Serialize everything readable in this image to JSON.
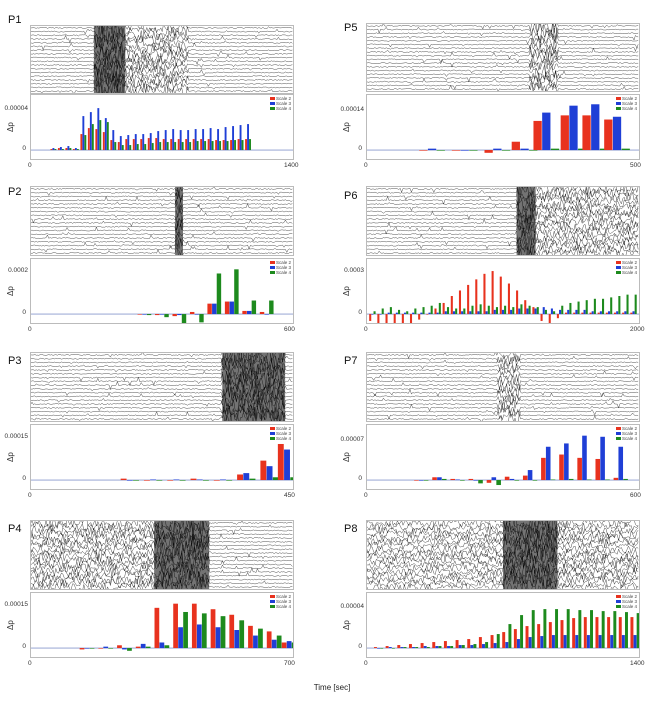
{
  "legend": [
    "Scale 2",
    "Scale 3",
    "Scale 4"
  ],
  "colors": {
    "scale2": "#e8321e",
    "scale3": "#1f3fd6",
    "scale4": "#1d8a1d",
    "zero": "#8899cc"
  },
  "xaxis_label": "Time [sec]",
  "ylabel": "Δp",
  "chart_data": [
    {
      "id": "P1",
      "type": "bar",
      "title": "P1",
      "ytick": "0.00004",
      "ymax": 5e-05,
      "xlim": [
        0,
        1400
      ],
      "xticks": [
        "0",
        "1400"
      ],
      "ylabel": "Δp",
      "x": [
        120,
        160,
        200,
        240,
        280,
        320,
        360,
        400,
        440,
        480,
        520,
        560,
        600,
        640,
        680,
        720,
        760,
        800,
        840,
        880,
        920,
        960,
        1000,
        1040,
        1080,
        1120,
        1160
      ],
      "series": [
        {
          "name": "Scale 2",
          "values": [
            1e-06,
            2e-06,
            2e-06,
            1e-06,
            1.6e-05,
            2.2e-05,
            2.1e-05,
            1.8e-05,
            1e-05,
            8e-06,
            1.1e-05,
            1.1e-05,
            1.1e-05,
            1.2e-05,
            1.2e-05,
            1.1e-05,
            1.1e-05,
            1.1e-05,
            1.1e-05,
            1.1e-05,
            1.1e-05,
            1.1e-05,
            1e-05,
            1e-05,
            1e-05,
            1.1e-05,
            1.1e-05
          ]
        },
        {
          "name": "Scale 3",
          "values": [
            2e-06,
            3e-06,
            4e-06,
            2e-06,
            3.4e-05,
            3.8e-05,
            4.2e-05,
            3.2e-05,
            2e-05,
            1.4e-05,
            1.5e-05,
            1.6e-05,
            1.6e-05,
            1.7e-05,
            1.9e-05,
            2e-05,
            2.1e-05,
            2e-05,
            2e-05,
            2.1e-05,
            2.1e-05,
            2.2e-05,
            2.1e-05,
            2.3e-05,
            2.4e-05,
            2.5e-05,
            2.6e-05
          ]
        },
        {
          "name": "Scale 4",
          "values": [
            1e-06,
            1e-06,
            2e-06,
            1e-06,
            1.5e-05,
            2.6e-05,
            3e-05,
            2.8e-05,
            8e-06,
            5e-06,
            5e-06,
            6e-06,
            6e-06,
            7e-06,
            8e-06,
            8e-06,
            8e-06,
            8e-06,
            8e-06,
            9e-06,
            9e-06,
            9e-06,
            9e-06,
            9e-06,
            1e-05,
            1e-05,
            1.1e-05
          ]
        }
      ]
    },
    {
      "id": "P2",
      "type": "bar",
      "title": "P2",
      "ytick": "0.0002",
      "ymax": 0.00024,
      "xlim": [
        0,
        600
      ],
      "xticks": [
        "0",
        "600"
      ],
      "ylabel": "Δp",
      "x": [
        260,
        300,
        340,
        380,
        420,
        460,
        500,
        540
      ],
      "series": [
        {
          "name": "Scale 2",
          "values": [
            0.0,
            -5e-06,
            -1e-05,
            1e-05,
            5e-05,
            6e-05,
            1.5e-05,
            1e-05
          ]
        },
        {
          "name": "Scale 3",
          "values": [
            0.0,
            0.0,
            -5e-06,
            0.0,
            5e-05,
            6e-05,
            1.5e-05,
            0.0
          ]
        },
        {
          "name": "Scale 4",
          "values": [
            -5e-06,
            -1.5e-05,
            -6.5e-05,
            -4e-05,
            0.000195,
            0.000215,
            6.5e-05,
            6.5e-05
          ]
        }
      ]
    },
    {
      "id": "P3",
      "type": "bar",
      "title": "P3",
      "ytick": "0.00015",
      "ymax": 0.00018,
      "xlim": [
        0,
        450
      ],
      "xticks": [
        "0",
        "450"
      ],
      "ylabel": "Δp",
      "x": [
        170,
        210,
        250,
        290,
        330,
        370,
        410,
        440
      ],
      "series": [
        {
          "name": "Scale 2",
          "values": [
            5e-06,
            0.0,
            0.0,
            5e-06,
            0.0,
            2e-05,
            7e-05,
            0.00013
          ]
        },
        {
          "name": "Scale 3",
          "values": [
            0.0,
            2e-06,
            2e-06,
            2e-06,
            2e-06,
            2.5e-05,
            5e-05,
            0.00011
          ]
        },
        {
          "name": "Scale 4",
          "values": [
            0.0,
            0.0,
            0.0,
            0.0,
            0.0,
            5e-06,
            1e-05,
            1e-05
          ]
        }
      ]
    },
    {
      "id": "P4",
      "type": "bar",
      "title": "P4",
      "ytick": "0.00015",
      "ymax": 0.00018,
      "xlim": [
        0,
        700
      ],
      "xticks": [
        "0",
        "700"
      ],
      "ylabel": "Δp",
      "x": [
        150,
        200,
        250,
        300,
        350,
        400,
        450,
        500,
        550,
        600,
        650,
        690
      ],
      "series": [
        {
          "name": "Scale 2",
          "values": [
            -5e-06,
            0.0,
            1e-05,
            5e-06,
            0.000145,
            0.00016,
            0.00016,
            0.00014,
            0.00012,
            8e-05,
            6e-05,
            2e-05
          ]
        },
        {
          "name": "Scale 3",
          "values": [
            0.0,
            5e-06,
            -5e-06,
            1.5e-05,
            2e-05,
            7.5e-05,
            8.5e-05,
            7.5e-05,
            6.5e-05,
            4.5e-05,
            3e-05,
            2.5e-05
          ]
        },
        {
          "name": "Scale 4",
          "values": [
            0.0,
            0.0,
            -1e-05,
            5e-06,
            1e-05,
            0.00013,
            0.000125,
            0.000115,
            0.0001,
            7e-05,
            4.5e-05,
            2e-05
          ]
        }
      ]
    },
    {
      "id": "P5",
      "type": "bar",
      "title": "P5",
      "ytick": "0.00014",
      "ymax": 0.00018,
      "xlim": [
        0,
        500
      ],
      "xticks": [
        "0",
        "500"
      ],
      "ylabel": "Δp",
      "x": [
        120,
        180,
        240,
        290,
        330,
        380,
        420,
        460
      ],
      "series": [
        {
          "name": "Scale 2",
          "values": [
            0.0,
            0.0,
            -1e-05,
            3e-05,
            0.000105,
            0.000125,
            0.000125,
            0.00011
          ]
        },
        {
          "name": "Scale 3",
          "values": [
            5e-06,
            0.0,
            5e-06,
            5e-06,
            0.000135,
            0.00016,
            0.000165,
            0.00012
          ]
        },
        {
          "name": "Scale 4",
          "values": [
            0.0,
            0.0,
            0.0,
            0.0,
            5e-06,
            5e-06,
            5e-06,
            5e-06
          ]
        }
      ]
    },
    {
      "id": "P6",
      "type": "bar",
      "title": "P6",
      "ytick": "0.0003",
      "ymax": 0.00036,
      "xlim": [
        0,
        2000
      ],
      "xticks": [
        "0",
        "2000"
      ],
      "ylabel": "Δp",
      "x": [
        40,
        100,
        160,
        220,
        280,
        340,
        400,
        460,
        520,
        580,
        640,
        700,
        760,
        820,
        880,
        940,
        1000,
        1060,
        1120,
        1180,
        1240,
        1300,
        1360,
        1420,
        1480,
        1540,
        1600,
        1660,
        1720,
        1780,
        1840,
        1900,
        1960
      ],
      "series": [
        {
          "name": "Scale 2",
          "values": [
            -5e-05,
            -9e-05,
            -0.00011,
            -0.00012,
            -0.0001,
            -7e-05,
            -4e-05,
            0.0,
            4e-05,
            8e-05,
            0.00013,
            0.00017,
            0.00021,
            0.00025,
            0.00029,
            0.00031,
            0.00027,
            0.00022,
            0.00017,
            0.0001,
            5e-05,
            -5e-05,
            -0.00011,
            -3e-05,
            1e-05,
            1e-05,
            1e-05,
            1e-05,
            1e-05,
            1e-05,
            1e-05,
            1e-05,
            1e-05
          ]
        },
        {
          "name": "Scale 3",
          "values": [
            0.0,
            0.0,
            1e-05,
            1e-05,
            1e-05,
            1e-05,
            1e-05,
            1e-05,
            1e-05,
            2e-05,
            2e-05,
            2e-05,
            2e-05,
            2e-05,
            2e-05,
            3e-05,
            3e-05,
            3e-05,
            4e-05,
            4e-05,
            4e-05,
            5e-05,
            4e-05,
            3e-05,
            3e-05,
            3e-05,
            3e-05,
            2e-05,
            2e-05,
            2e-05,
            2e-05,
            2e-05,
            2e-05
          ]
        },
        {
          "name": "Scale 4",
          "values": [
            2e-05,
            4e-05,
            5e-05,
            3e-05,
            2e-05,
            4e-05,
            5e-05,
            6e-05,
            8e-05,
            5e-05,
            4e-05,
            4e-05,
            6e-05,
            7e-05,
            6e-05,
            5e-05,
            6e-05,
            5e-05,
            7e-05,
            6e-05,
            5e-05,
            3e-05,
            2e-05,
            6e-05,
            8e-05,
            9e-05,
            0.0001,
            0.00011,
            0.00011,
            0.00012,
            0.00013,
            0.00014,
            0.00014
          ]
        }
      ]
    },
    {
      "id": "P7",
      "type": "bar",
      "title": "P7",
      "ytick": "0.00007",
      "ymax": 9e-05,
      "xlim": [
        0,
        600
      ],
      "xticks": [
        "0",
        "600"
      ],
      "ylabel": "Δp",
      "x": [
        120,
        160,
        200,
        240,
        280,
        320,
        360,
        400,
        440,
        480,
        520,
        560
      ],
      "series": [
        {
          "name": "Scale 2",
          "values": [
            0.0,
            5e-06,
            2e-06,
            2e-06,
            -5e-06,
            6e-06,
            8e-06,
            4e-05,
            4.6e-05,
            4e-05,
            3.8e-05,
            4e-06
          ]
        },
        {
          "name": "Scale 3",
          "values": [
            0.0,
            5e-06,
            1e-06,
            0.0,
            5e-06,
            2e-06,
            1.8e-05,
            6e-05,
            6.6e-05,
            8e-05,
            7.8e-05,
            6e-05
          ]
        },
        {
          "name": "Scale 4",
          "values": [
            0.0,
            2e-06,
            0.0,
            -6e-06,
            -9e-06,
            0.0,
            0.0,
            1e-06,
            2e-06,
            1e-06,
            1e-06,
            2e-06
          ]
        }
      ]
    },
    {
      "id": "P8",
      "type": "bar",
      "title": "P8",
      "ytick": "0.00004",
      "ymax": 5e-05,
      "xlim": [
        0,
        1400
      ],
      "xticks": [
        "0",
        "1400"
      ],
      "ylabel": "Δp",
      "x": [
        60,
        120,
        180,
        240,
        300,
        360,
        420,
        480,
        540,
        600,
        660,
        720,
        780,
        840,
        900,
        960,
        1020,
        1080,
        1140,
        1200,
        1260,
        1320,
        1380
      ],
      "series": [
        {
          "name": "Scale 2",
          "values": [
            1e-06,
            2e-06,
            3e-06,
            4e-06,
            5e-06,
            6e-06,
            7e-06,
            8e-06,
            9e-06,
            1.1e-05,
            1.3e-05,
            1.6e-05,
            1.9e-05,
            2.2e-05,
            2.4e-05,
            2.6e-05,
            2.8e-05,
            3e-05,
            3.1e-05,
            3.1e-05,
            3.1e-05,
            3.1e-05,
            3.1e-05
          ]
        },
        {
          "name": "Scale 3",
          "values": [
            0.0,
            1e-06,
            1e-06,
            1e-06,
            2e-06,
            2e-06,
            2e-06,
            3e-06,
            3e-06,
            4e-06,
            5e-06,
            6e-06,
            9e-06,
            1.1e-05,
            1.2e-05,
            1.3e-05,
            1.3e-05,
            1.3e-05,
            1.3e-05,
            1.3e-05,
            1.3e-05,
            1.3e-05,
            1.3e-05
          ]
        },
        {
          "name": "Scale 4",
          "values": [
            0.0,
            0.0,
            1e-06,
            1e-06,
            1e-06,
            2e-06,
            2e-06,
            3e-06,
            4e-06,
            6e-06,
            1.4e-05,
            2.4e-05,
            3.3e-05,
            3.8e-05,
            3.9e-05,
            3.9e-05,
            3.9e-05,
            3.8e-05,
            3.8e-05,
            3.7e-05,
            3.7e-05,
            3.6e-05,
            3.5e-05
          ]
        }
      ]
    }
  ]
}
